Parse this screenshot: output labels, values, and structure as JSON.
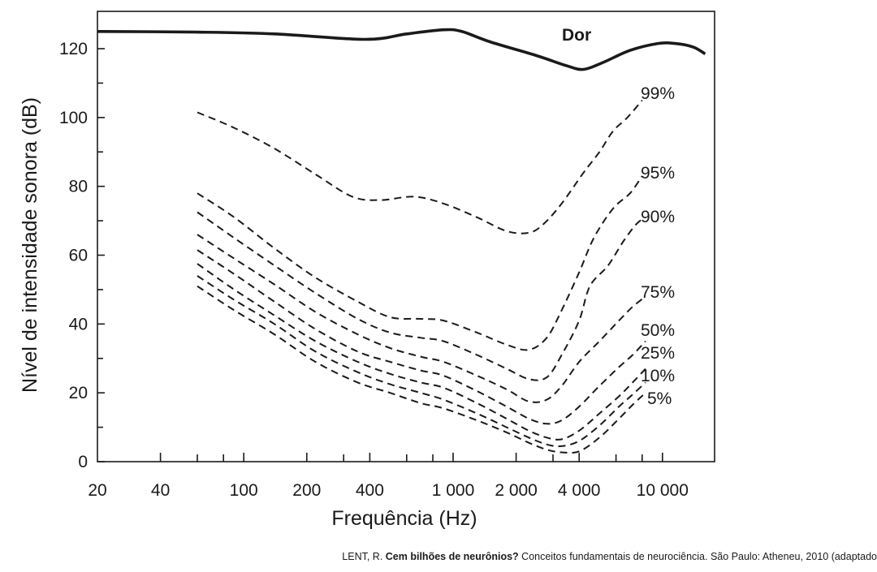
{
  "chart_data": {
    "type": "line",
    "xscale": "log",
    "xlabel": "Frequência (Hz)",
    "ylabel": "Nível de intensidade sonora (dB)",
    "xlim": [
      20,
      16000
    ],
    "ylim": [
      0,
      130
    ],
    "x_ticks": [
      {
        "value": 20,
        "label": "20"
      },
      {
        "value": 40,
        "label": "40"
      },
      {
        "value": 100,
        "label": "100"
      },
      {
        "value": 200,
        "label": "200"
      },
      {
        "value": 400,
        "label": "400"
      },
      {
        "value": 1000,
        "label": "1 000"
      },
      {
        "value": 2000,
        "label": "2 000"
      },
      {
        "value": 4000,
        "label": "4 000"
      },
      {
        "value": 10000,
        "label": "10 000"
      }
    ],
    "y_ticks": [
      {
        "value": 0,
        "label": "0"
      },
      {
        "value": 20,
        "label": "20"
      },
      {
        "value": 40,
        "label": "40"
      },
      {
        "value": 60,
        "label": "60"
      },
      {
        "value": 80,
        "label": "80"
      },
      {
        "value": 100,
        "label": "100"
      },
      {
        "value": 120,
        "label": "120"
      }
    ],
    "series": [
      {
        "name": "Dor",
        "style": "solid",
        "points": [
          [
            20,
            125
          ],
          [
            60,
            124.8
          ],
          [
            140,
            124.3
          ],
          [
            380,
            122.7
          ],
          [
            600,
            124.3
          ],
          [
            900,
            125.5
          ],
          [
            1100,
            125
          ],
          [
            1500,
            122
          ],
          [
            2500,
            118
          ],
          [
            3500,
            115
          ],
          [
            4200,
            114
          ],
          [
            5200,
            116
          ],
          [
            7000,
            119.5
          ],
          [
            9500,
            121.5
          ],
          [
            11500,
            121.5
          ],
          [
            14000,
            120.5
          ],
          [
            16000,
            118.5
          ]
        ]
      },
      {
        "name": "99%",
        "style": "dashed",
        "points": [
          [
            60,
            101.5
          ],
          [
            90,
            97
          ],
          [
            140,
            91
          ],
          [
            220,
            83.5
          ],
          [
            330,
            77
          ],
          [
            450,
            76
          ],
          [
            650,
            77
          ],
          [
            900,
            75
          ],
          [
            1300,
            71
          ],
          [
            1800,
            67
          ],
          [
            2300,
            66.5
          ],
          [
            2700,
            69
          ],
          [
            3300,
            75
          ],
          [
            4200,
            84
          ],
          [
            5000,
            90
          ],
          [
            5800,
            96
          ],
          [
            6800,
            100
          ],
          [
            8000,
            105
          ]
        ]
      },
      {
        "name": "95%",
        "style": "dashed",
        "points": [
          [
            60,
            78
          ],
          [
            90,
            71
          ],
          [
            140,
            62
          ],
          [
            220,
            53.5
          ],
          [
            350,
            46.5
          ],
          [
            500,
            42
          ],
          [
            700,
            41.5
          ],
          [
            900,
            41
          ],
          [
            1300,
            37.5
          ],
          [
            1800,
            34
          ],
          [
            2300,
            32.5
          ],
          [
            2800,
            36
          ],
          [
            3300,
            44
          ],
          [
            4000,
            55
          ],
          [
            4700,
            65
          ],
          [
            5800,
            73.5
          ],
          [
            7000,
            78
          ],
          [
            8000,
            83
          ]
        ]
      },
      {
        "name": "90%",
        "style": "dashed",
        "points": [
          [
            60,
            72.5
          ],
          [
            90,
            65
          ],
          [
            140,
            57
          ],
          [
            220,
            49
          ],
          [
            350,
            41.5
          ],
          [
            500,
            37.5
          ],
          [
            700,
            36
          ],
          [
            900,
            35
          ],
          [
            1300,
            31
          ],
          [
            1800,
            27
          ],
          [
            2300,
            24
          ],
          [
            2800,
            24.5
          ],
          [
            3300,
            31
          ],
          [
            4000,
            41
          ],
          [
            4500,
            51
          ],
          [
            5500,
            57
          ],
          [
            6500,
            64
          ],
          [
            7500,
            69
          ],
          [
            8300,
            71
          ]
        ]
      },
      {
        "name": "75%",
        "style": "dashed",
        "points": [
          [
            60,
            66
          ],
          [
            90,
            59
          ],
          [
            140,
            51.5
          ],
          [
            220,
            43.5
          ],
          [
            350,
            37
          ],
          [
            500,
            33
          ],
          [
            700,
            30.5
          ],
          [
            900,
            29
          ],
          [
            1300,
            25
          ],
          [
            1800,
            21
          ],
          [
            2300,
            17.5
          ],
          [
            2800,
            18
          ],
          [
            3300,
            22
          ],
          [
            4000,
            29
          ],
          [
            5000,
            35
          ],
          [
            6200,
            41
          ],
          [
            7200,
            45
          ],
          [
            8300,
            48
          ]
        ]
      },
      {
        "name": "50%",
        "style": "dashed",
        "points": [
          [
            60,
            61.5
          ],
          [
            90,
            54.5
          ],
          [
            140,
            46.5
          ],
          [
            220,
            38.5
          ],
          [
            350,
            32
          ],
          [
            500,
            29
          ],
          [
            700,
            26.5
          ],
          [
            900,
            25
          ],
          [
            1300,
            20.5
          ],
          [
            1800,
            16
          ],
          [
            2300,
            12.5
          ],
          [
            2800,
            11
          ],
          [
            3300,
            12
          ],
          [
            4000,
            16
          ],
          [
            5000,
            22
          ],
          [
            6200,
            27.5
          ],
          [
            7200,
            31
          ],
          [
            8300,
            35
          ]
        ]
      },
      {
        "name": "25%",
        "style": "dashed",
        "points": [
          [
            60,
            57.5
          ],
          [
            90,
            50
          ],
          [
            140,
            42.5
          ],
          [
            220,
            35
          ],
          [
            350,
            29
          ],
          [
            500,
            25.5
          ],
          [
            700,
            23
          ],
          [
            900,
            21.5
          ],
          [
            1300,
            17
          ],
          [
            1800,
            12.5
          ],
          [
            2300,
            9
          ],
          [
            2800,
            7
          ],
          [
            3300,
            6.5
          ],
          [
            4000,
            9
          ],
          [
            5000,
            14
          ],
          [
            6200,
            19
          ],
          [
            7200,
            23
          ],
          [
            8300,
            27
          ]
        ]
      },
      {
        "name": "10%",
        "style": "dashed",
        "points": [
          [
            60,
            54
          ],
          [
            90,
            47
          ],
          [
            140,
            40
          ],
          [
            220,
            32
          ],
          [
            350,
            26
          ],
          [
            500,
            22.5
          ],
          [
            700,
            20
          ],
          [
            900,
            18
          ],
          [
            1300,
            14
          ],
          [
            1800,
            10
          ],
          [
            2300,
            7
          ],
          [
            2800,
            5
          ],
          [
            3300,
            4.5
          ],
          [
            4000,
            6
          ],
          [
            5000,
            10.5
          ],
          [
            6200,
            16
          ],
          [
            7200,
            19.5
          ],
          [
            8300,
            23
          ]
        ]
      },
      {
        "name": "5%",
        "style": "dashed",
        "points": [
          [
            60,
            51
          ],
          [
            90,
            44
          ],
          [
            140,
            37
          ],
          [
            220,
            29
          ],
          [
            350,
            23
          ],
          [
            500,
            20
          ],
          [
            700,
            17
          ],
          [
            900,
            15.5
          ],
          [
            1300,
            12
          ],
          [
            1800,
            8.5
          ],
          [
            2300,
            5.5
          ],
          [
            2800,
            3.5
          ],
          [
            3300,
            2.7
          ],
          [
            4000,
            3
          ],
          [
            5000,
            7
          ],
          [
            6200,
            12.5
          ],
          [
            7200,
            16.5
          ],
          [
            8300,
            20
          ]
        ]
      }
    ],
    "labels": [
      {
        "text": "Dor",
        "class": "pain-label",
        "x": 0,
        "y": 0
      },
      {
        "text": "99%",
        "class": "curve-label"
      },
      {
        "text": "95%",
        "class": "curve-label"
      },
      {
        "text": "90%",
        "class": "curve-label"
      },
      {
        "text": "75%",
        "class": "curve-label"
      },
      {
        "text": "50%",
        "class": "curve-label"
      },
      {
        "text": "25%",
        "class": "curve-label"
      },
      {
        "text": "10%",
        "class": "curve-label"
      },
      {
        "text": "5%",
        "class": "curve-label"
      }
    ]
  },
  "citation": {
    "author": "LENT, R. ",
    "title": "Cem bilhões de neurônios?",
    "rest": " Conceitos fundamentais de neurociência. São Paulo: Atheneu, 2010 (adaptado"
  }
}
